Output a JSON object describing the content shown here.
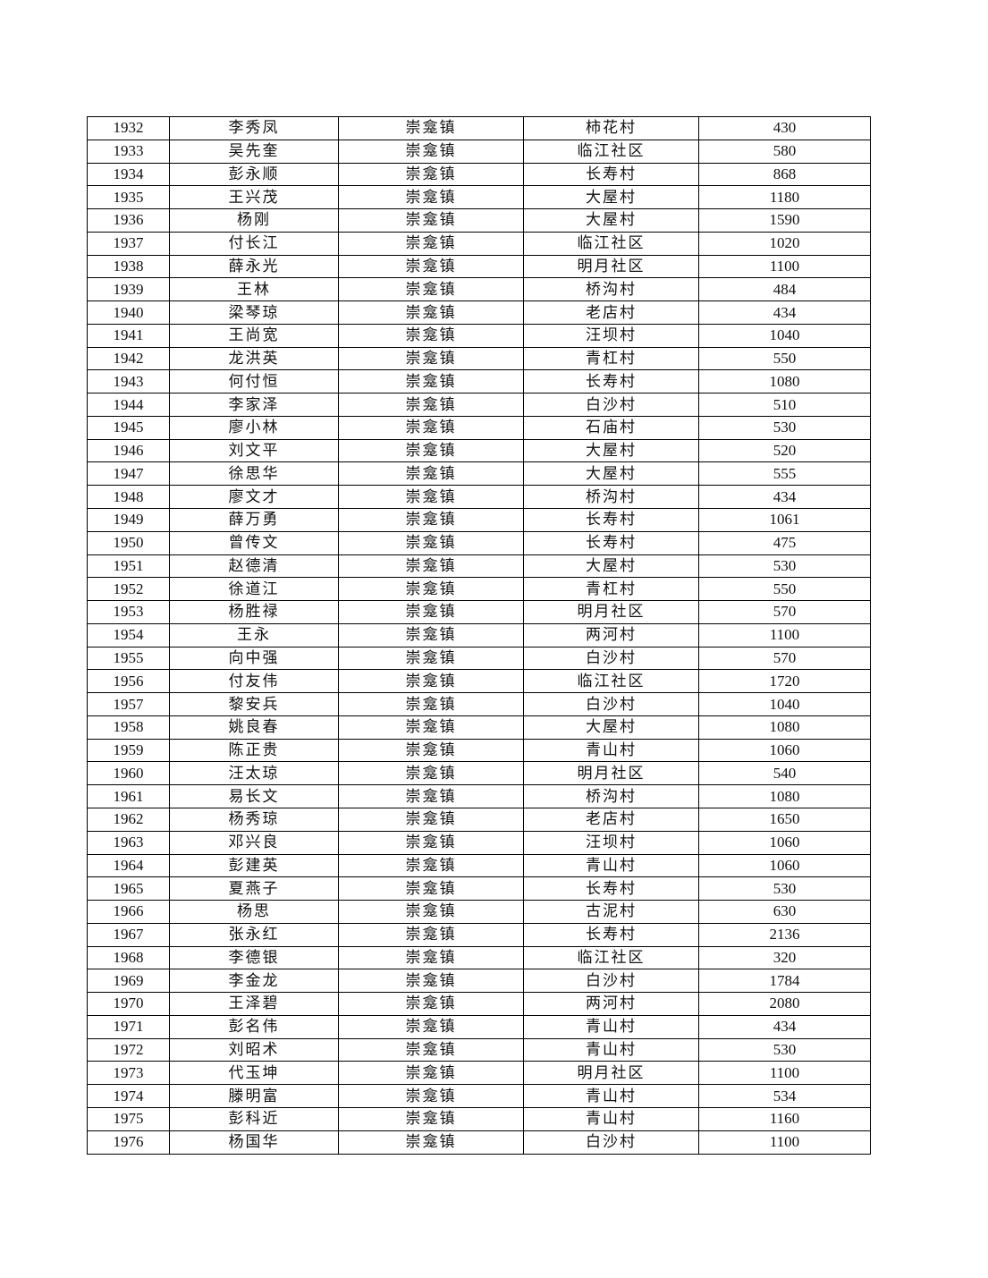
{
  "table": {
    "rows": [
      [
        "1932",
        "李秀凤",
        "崇龛镇",
        "柿花村",
        "430"
      ],
      [
        "1933",
        "吴先奎",
        "崇龛镇",
        "临江社区",
        "580"
      ],
      [
        "1934",
        "彭永顺",
        "崇龛镇",
        "长寿村",
        "868"
      ],
      [
        "1935",
        "王兴茂",
        "崇龛镇",
        "大屋村",
        "1180"
      ],
      [
        "1936",
        "杨刚",
        "崇龛镇",
        "大屋村",
        "1590"
      ],
      [
        "1937",
        "付长江",
        "崇龛镇",
        "临江社区",
        "1020"
      ],
      [
        "1938",
        "薛永光",
        "崇龛镇",
        "明月社区",
        "1100"
      ],
      [
        "1939",
        "王林",
        "崇龛镇",
        "桥沟村",
        "484"
      ],
      [
        "1940",
        "梁琴琼",
        "崇龛镇",
        "老店村",
        "434"
      ],
      [
        "1941",
        "王尚宽",
        "崇龛镇",
        "汪坝村",
        "1040"
      ],
      [
        "1942",
        "龙洪英",
        "崇龛镇",
        "青杠村",
        "550"
      ],
      [
        "1943",
        "何付恒",
        "崇龛镇",
        "长寿村",
        "1080"
      ],
      [
        "1944",
        "李家泽",
        "崇龛镇",
        "白沙村",
        "510"
      ],
      [
        "1945",
        "廖小林",
        "崇龛镇",
        "石庙村",
        "530"
      ],
      [
        "1946",
        "刘文平",
        "崇龛镇",
        "大屋村",
        "520"
      ],
      [
        "1947",
        "徐思华",
        "崇龛镇",
        "大屋村",
        "555"
      ],
      [
        "1948",
        "廖文才",
        "崇龛镇",
        "桥沟村",
        "434"
      ],
      [
        "1949",
        "薛万勇",
        "崇龛镇",
        "长寿村",
        "1061"
      ],
      [
        "1950",
        "曾传文",
        "崇龛镇",
        "长寿村",
        "475"
      ],
      [
        "1951",
        "赵德清",
        "崇龛镇",
        "大屋村",
        "530"
      ],
      [
        "1952",
        "徐道江",
        "崇龛镇",
        "青杠村",
        "550"
      ],
      [
        "1953",
        "杨胜禄",
        "崇龛镇",
        "明月社区",
        "570"
      ],
      [
        "1954",
        "王永",
        "崇龛镇",
        "两河村",
        "1100"
      ],
      [
        "1955",
        "向中强",
        "崇龛镇",
        "白沙村",
        "570"
      ],
      [
        "1956",
        "付友伟",
        "崇龛镇",
        "临江社区",
        "1720"
      ],
      [
        "1957",
        "黎安兵",
        "崇龛镇",
        "白沙村",
        "1040"
      ],
      [
        "1958",
        "姚良春",
        "崇龛镇",
        "大屋村",
        "1080"
      ],
      [
        "1959",
        "陈正贵",
        "崇龛镇",
        "青山村",
        "1060"
      ],
      [
        "1960",
        "汪太琼",
        "崇龛镇",
        "明月社区",
        "540"
      ],
      [
        "1961",
        "易长文",
        "崇龛镇",
        "桥沟村",
        "1080"
      ],
      [
        "1962",
        "杨秀琼",
        "崇龛镇",
        "老店村",
        "1650"
      ],
      [
        "1963",
        "邓兴良",
        "崇龛镇",
        "汪坝村",
        "1060"
      ],
      [
        "1964",
        "彭建英",
        "崇龛镇",
        "青山村",
        "1060"
      ],
      [
        "1965",
        "夏燕子",
        "崇龛镇",
        "长寿村",
        "530"
      ],
      [
        "1966",
        "杨思",
        "崇龛镇",
        "古泥村",
        "630"
      ],
      [
        "1967",
        "张永红",
        "崇龛镇",
        "长寿村",
        "2136"
      ],
      [
        "1968",
        "李德银",
        "崇龛镇",
        "临江社区",
        "320"
      ],
      [
        "1969",
        "李金龙",
        "崇龛镇",
        "白沙村",
        "1784"
      ],
      [
        "1970",
        "王泽碧",
        "崇龛镇",
        "两河村",
        "2080"
      ],
      [
        "1971",
        "彭名伟",
        "崇龛镇",
        "青山村",
        "434"
      ],
      [
        "1972",
        "刘昭术",
        "崇龛镇",
        "青山村",
        "530"
      ],
      [
        "1973",
        "代玉坤",
        "崇龛镇",
        "明月社区",
        "1100"
      ],
      [
        "1974",
        "滕明富",
        "崇龛镇",
        "青山村",
        "534"
      ],
      [
        "1975",
        "彭科近",
        "崇龛镇",
        "青山村",
        "1160"
      ],
      [
        "1976",
        "杨国华",
        "崇龛镇",
        "白沙村",
        "1100"
      ]
    ]
  }
}
